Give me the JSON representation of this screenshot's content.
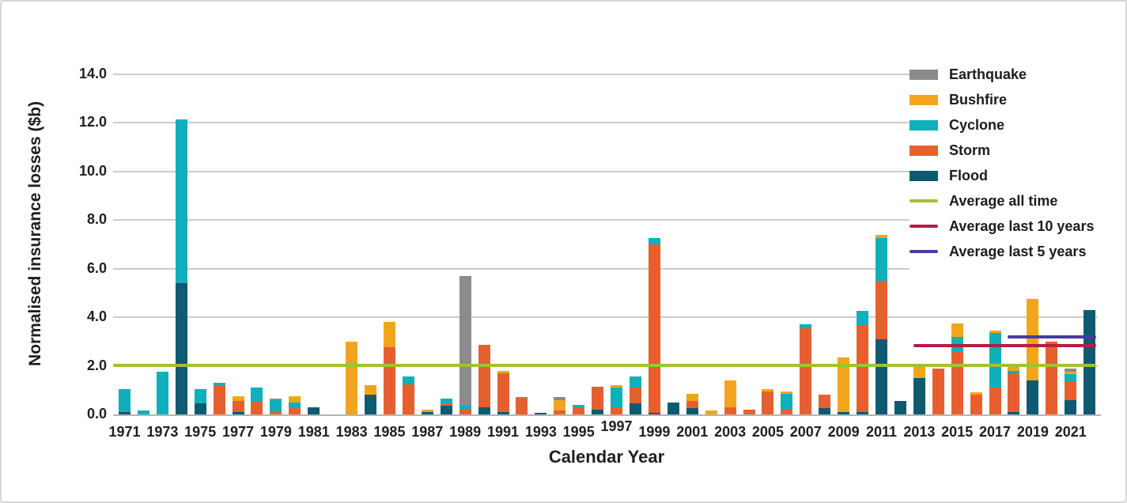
{
  "chart_data": {
    "type": "bar",
    "stacked": true,
    "title": "",
    "ylabel": "Normalised insurance losses ($b)",
    "xlabel": "Calendar Year",
    "ylim": [
      0,
      14
    ],
    "ytick_labels": [
      "0.0",
      "2.0",
      "4.0",
      "6.0",
      "8.0",
      "10.0",
      "12.0",
      "14.0"
    ],
    "grid": true,
    "legend_position": "top-right",
    "start_year": 1971,
    "end_year": 2022,
    "xtick_labels": [
      "1971",
      "1973",
      "1975",
      "1977",
      "1979",
      "1981",
      "1983",
      "1985",
      "1987",
      "1989",
      "1991",
      "1993",
      "1995",
      "1997",
      "1999",
      "2001",
      "2003",
      "2005",
      "2007",
      "2009",
      "2011",
      "2013",
      "2015",
      "2017",
      "2019",
      "2021"
    ],
    "stack_order": [
      "Flood",
      "Storm",
      "Cyclone",
      "Bushfire",
      "Earthquake"
    ],
    "colors": {
      "Earthquake": "#8b8b8b",
      "Bushfire": "#f2a51c",
      "Cyclone": "#0fb0ba",
      "Storm": "#e6602f",
      "Flood": "#0d5a71",
      "Average all time": "#a3c12f",
      "Average last 10 years": "#b51e45",
      "Average last 5 years": "#4b3a9f"
    },
    "series": [
      {
        "name": "Flood",
        "values": [
          0.1,
          0,
          0,
          5.4,
          0.45,
          0,
          0.1,
          0,
          0,
          0,
          0.3,
          0,
          0,
          0.8,
          0,
          0,
          0.1,
          0.35,
          0,
          0.3,
          0.1,
          0,
          0.08,
          0,
          0,
          0.2,
          0,
          0.45,
          0.05,
          0.5,
          0.25,
          0,
          0,
          0,
          0,
          0,
          0,
          0.25,
          0.1,
          0.1,
          3.1,
          0.55,
          1.5,
          0,
          0,
          0,
          0,
          0.1,
          1.4,
          0,
          0.6,
          4.3
        ]
      },
      {
        "name": "Storm",
        "values": [
          0,
          0,
          0,
          0,
          0,
          1.2,
          0.45,
          0.55,
          0.1,
          0.25,
          0,
          0,
          0,
          0,
          2.75,
          1.25,
          0,
          0.1,
          0.2,
          2.55,
          1.6,
          0.7,
          0,
          0.15,
          0.3,
          0.95,
          0.3,
          0.65,
          6.95,
          0,
          0.3,
          0,
          0.3,
          0.2,
          0.95,
          0.2,
          3.55,
          0.55,
          0,
          3.55,
          2.4,
          0,
          0,
          1.9,
          2.6,
          0.8,
          1.1,
          1.55,
          0,
          3.0,
          0.75,
          0
        ]
      },
      {
        "name": "Cyclone",
        "values": [
          0.95,
          0.15,
          1.75,
          6.75,
          0.6,
          0.1,
          0,
          0.55,
          0.5,
          0.25,
          0,
          0,
          0,
          0,
          0,
          0.3,
          0,
          0.2,
          0.2,
          0,
          0,
          0,
          0,
          0,
          0.1,
          0,
          0.8,
          0.45,
          0.25,
          0,
          0,
          0,
          0,
          0,
          0,
          0.65,
          0.15,
          0,
          0,
          0.6,
          1.75,
          0,
          0,
          0,
          0.6,
          0,
          2.25,
          0.15,
          0,
          0,
          0.3,
          0
        ]
      },
      {
        "name": "Bushfire",
        "values": [
          0,
          0,
          0,
          0,
          0,
          0,
          0.2,
          0,
          0,
          0.25,
          0,
          0,
          3.0,
          0.4,
          1.05,
          0,
          0.1,
          0,
          0,
          0,
          0.1,
          0,
          0,
          0.45,
          0,
          0,
          0.1,
          0,
          0,
          0,
          0.3,
          0.15,
          1.1,
          0,
          0.1,
          0.1,
          0,
          0,
          2.25,
          0,
          0.15,
          0,
          0.5,
          0,
          0.55,
          0.1,
          0.1,
          0.15,
          3.35,
          0,
          0.1,
          0
        ]
      },
      {
        "name": "Earthquake",
        "values": [
          0,
          0,
          0,
          0,
          0,
          0,
          0,
          0,
          0.05,
          0,
          0,
          0,
          0,
          0,
          0,
          0,
          0,
          0,
          5.3,
          0,
          0,
          0,
          0,
          0.1,
          0,
          0,
          0,
          0,
          0,
          0,
          0,
          0,
          0,
          0,
          0,
          0,
          0,
          0,
          0,
          0,
          0,
          0,
          0,
          0,
          0,
          0,
          0,
          0,
          0,
          0,
          0.15,
          0
        ]
      }
    ],
    "reference_lines": [
      {
        "label": "Average all time",
        "value": 2.02,
        "color": "#a3c12f",
        "start_year": 1971
      },
      {
        "label": "Average last 10 years",
        "value": 2.82,
        "color": "#b51e45",
        "start_year": 2013
      },
      {
        "label": "Average last 5 years",
        "value": 3.18,
        "color": "#4b3a9f",
        "start_year": 2018
      }
    ]
  },
  "legend": {
    "items": [
      {
        "label": "Earthquake",
        "color": "#8b8b8b",
        "kind": "patch"
      },
      {
        "label": "Bushfire",
        "color": "#f2a51c",
        "kind": "patch"
      },
      {
        "label": "Cyclone",
        "color": "#0fb0ba",
        "kind": "patch"
      },
      {
        "label": "Storm",
        "color": "#e6602f",
        "kind": "patch"
      },
      {
        "label": "Flood",
        "color": "#0d5a71",
        "kind": "patch"
      },
      {
        "label": "Average all time",
        "color": "#a3c12f",
        "kind": "line"
      },
      {
        "label": "Average last 10 years",
        "color": "#b51e45",
        "kind": "line"
      },
      {
        "label": "Average last 5 years",
        "color": "#4b3a9f",
        "kind": "line"
      }
    ]
  }
}
